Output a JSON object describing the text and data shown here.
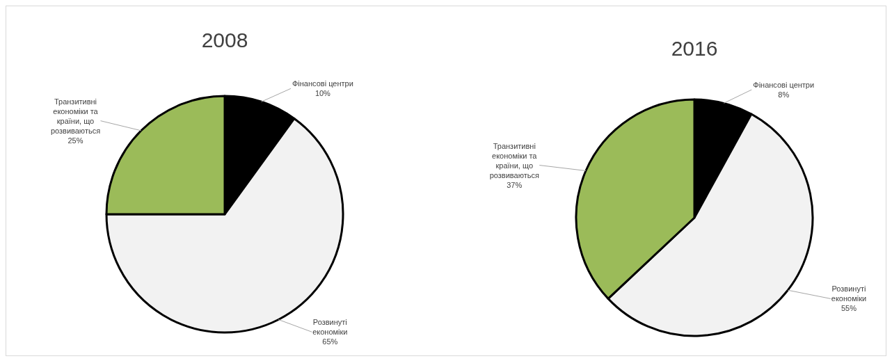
{
  "chart_data": [
    {
      "type": "pie",
      "title": "2008",
      "categories": [
        "Фінансові центри",
        "Розвинуті економіки",
        "Транзитивні економіки та країни, що розвиваються"
      ],
      "values": [
        10,
        65,
        25
      ],
      "colors": [
        "#000000",
        "#f2f2f2",
        "#9bbb59"
      ],
      "value_labels": [
        "10%",
        "65%",
        "25%"
      ]
    },
    {
      "type": "pie",
      "title": "2016",
      "categories": [
        "Фінансові центри",
        "Розвинуті економіки",
        "Транзитивні економіки та країни, що розвиваються"
      ],
      "values": [
        8,
        55,
        37
      ],
      "colors": [
        "#000000",
        "#f2f2f2",
        "#9bbb59"
      ],
      "value_labels": [
        "8%",
        "55%",
        "37%"
      ]
    }
  ]
}
